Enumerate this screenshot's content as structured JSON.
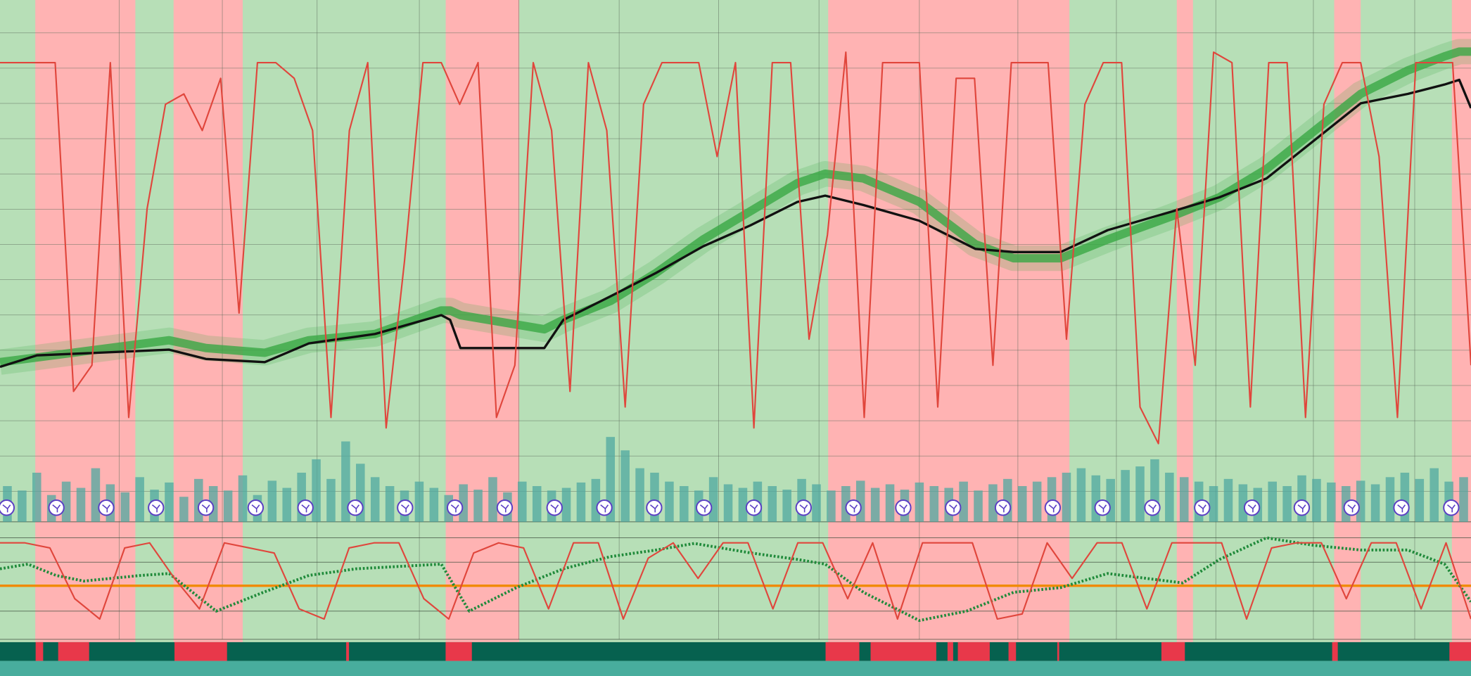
{
  "chart_data": [
    {
      "type": "line",
      "xlim": [
        0,
        100
      ],
      "ylim": [
        0,
        100
      ],
      "bands": [
        {
          "start": 2.4,
          "end": 9.2,
          "color": "#ffb3b3"
        },
        {
          "start": 11.8,
          "end": 16.5,
          "color": "#ffb3b3"
        },
        {
          "start": 30.3,
          "end": 35.3,
          "color": "#ffb3b3"
        },
        {
          "start": 56.3,
          "end": 72.7,
          "color": "#ffb3b3"
        },
        {
          "start": 80.0,
          "end": 81.1,
          "color": "#ffb3b3"
        },
        {
          "start": 90.7,
          "end": 92.5,
          "color": "#ffb3b3"
        },
        {
          "start": 98.7,
          "end": 100,
          "color": "#ffb3b3"
        }
      ],
      "x": [
        0,
        2.5,
        11.5,
        14,
        18,
        21,
        25.5,
        30,
        30.6,
        31.3,
        37,
        38.3,
        41.5,
        44.6,
        47.8,
        51,
        54.2,
        56.1,
        58.7,
        62.5,
        66.3,
        68.9,
        72.1,
        75.3,
        79.7,
        82.9,
        86.1,
        89.3,
        92.5,
        95.7,
        98.2,
        99.2,
        100
      ],
      "series": [
        {
          "color": "#3aa845",
          "width": 9,
          "values": [
            30.6,
            31.5,
            34.8,
            33.3,
            32.4,
            34.8,
            36.0,
            40.5,
            40.5,
            39.6,
            36.9,
            38.7,
            42.3,
            47.7,
            54.1,
            59.5,
            64.9,
            66.7,
            65.8,
            61.3,
            53.2,
            50.5,
            50.5,
            54.1,
            58.6,
            62.2,
            67.6,
            74.8,
            82.0,
            86.5,
            89.2,
            90.1,
            90.1
          ]
        },
        {
          "color": "#111111",
          "width": 2.5,
          "values": [
            29.7,
            31.9,
            33.0,
            31.2,
            30.6,
            34.2,
            36.0,
            39.6,
            38.7,
            33.3,
            33.3,
            38.7,
            43.2,
            47.7,
            52.8,
            56.8,
            61.3,
            62.5,
            60.7,
            57.7,
            52.3,
            51.7,
            51.7,
            55.9,
            59.5,
            62.2,
            65.8,
            73.0,
            80.2,
            82.0,
            83.8,
            84.7,
            79.3
          ]
        }
      ]
    },
    {
      "type": "line",
      "xlim": [
        0,
        100
      ],
      "ylim": [
        0,
        100
      ],
      "color": "#e0463c",
      "values": [
        88,
        88,
        88,
        88,
        25,
        30,
        88,
        20,
        60,
        80,
        82,
        75,
        85,
        40,
        88,
        88,
        85,
        75,
        20,
        75,
        88,
        18,
        50,
        88,
        88,
        80,
        88,
        20,
        30,
        88,
        75,
        25,
        88,
        75,
        22,
        80,
        88,
        88,
        88,
        70,
        88,
        18,
        88,
        88,
        35,
        55,
        90,
        20,
        88,
        88,
        88,
        22,
        85,
        85,
        30,
        88,
        88,
        88,
        35,
        80,
        88,
        88,
        22,
        15,
        60,
        30,
        90,
        88,
        22,
        88,
        88,
        20,
        80,
        88,
        88,
        70,
        20,
        88,
        88,
        88,
        30
      ]
    },
    {
      "type": "bar",
      "ylim": [
        0,
        100
      ],
      "color": "#4fa8a0",
      "values": [
        40,
        35,
        55,
        30,
        45,
        38,
        60,
        42,
        33,
        50,
        36,
        44,
        28,
        48,
        40,
        35,
        52,
        30,
        46,
        38,
        55,
        70,
        48,
        90,
        65,
        50,
        40,
        35,
        45,
        38,
        30,
        42,
        36,
        50,
        33,
        45,
        40,
        35,
        38,
        44,
        48,
        95,
        80,
        60,
        55,
        45,
        40,
        35,
        50,
        42,
        38,
        45,
        40,
        36,
        48,
        42,
        35,
        40,
        46,
        38,
        42,
        36,
        44,
        40,
        38,
        45,
        35,
        42,
        48,
        40,
        45,
        50,
        55,
        60,
        52,
        48,
        58,
        62,
        70,
        55,
        50,
        45,
        40,
        48,
        42,
        38,
        45,
        40,
        52,
        48,
        44,
        40,
        46,
        42,
        50,
        55,
        48,
        60,
        45,
        50
      ]
    },
    {
      "type": "line",
      "xlim": [
        0,
        100
      ],
      "ylim": [
        0,
        100
      ],
      "hline": 52.8,
      "hline_color": "#f08a00",
      "x": [
        0,
        1.9,
        3.8,
        5.7,
        9.6,
        11.5,
        14.7,
        17.9,
        21,
        24.2,
        30,
        31.9,
        35.1,
        38.3,
        41.5,
        44.6,
        47.2,
        51,
        54.2,
        56.1,
        58.7,
        62.5,
        65.7,
        68.9,
        72.1,
        75.3,
        80.4,
        82.9,
        86.1,
        89.3,
        92.5,
        95.7,
        98.2,
        100
      ],
      "series": [
        {
          "color": "#1f8a3a",
          "width": 3,
          "values": [
            69.4,
            74.1,
            63,
            57.4,
            63,
            64.8,
            27.8,
            46.3,
            63,
            69.4,
            74.1,
            27.8,
            50.9,
            69.4,
            81.5,
            88,
            94.4,
            85.2,
            78.7,
            74.1,
            46.3,
            18.5,
            27.8,
            46.3,
            50.9,
            64.8,
            55.6,
            78.7,
            100,
            92.6,
            88,
            88,
            74.1,
            37
          ]
        }
      ]
    },
    {
      "type": "line",
      "xlim": [
        0,
        100
      ],
      "ylim": [
        0,
        100
      ],
      "color": "#e0463c",
      "values": [
        95,
        95,
        90,
        40,
        20,
        90,
        95,
        60,
        30,
        95,
        90,
        85,
        30,
        20,
        90,
        95,
        95,
        40,
        20,
        85,
        95,
        90,
        30,
        95,
        95,
        20,
        80,
        95,
        60,
        95,
        95,
        30,
        95,
        95,
        40,
        95,
        20,
        95,
        95,
        95,
        20,
        25,
        95,
        60,
        95,
        95,
        30,
        95,
        95,
        95,
        20,
        90,
        95,
        95,
        40,
        95,
        95,
        30,
        95,
        20
      ]
    }
  ]
}
